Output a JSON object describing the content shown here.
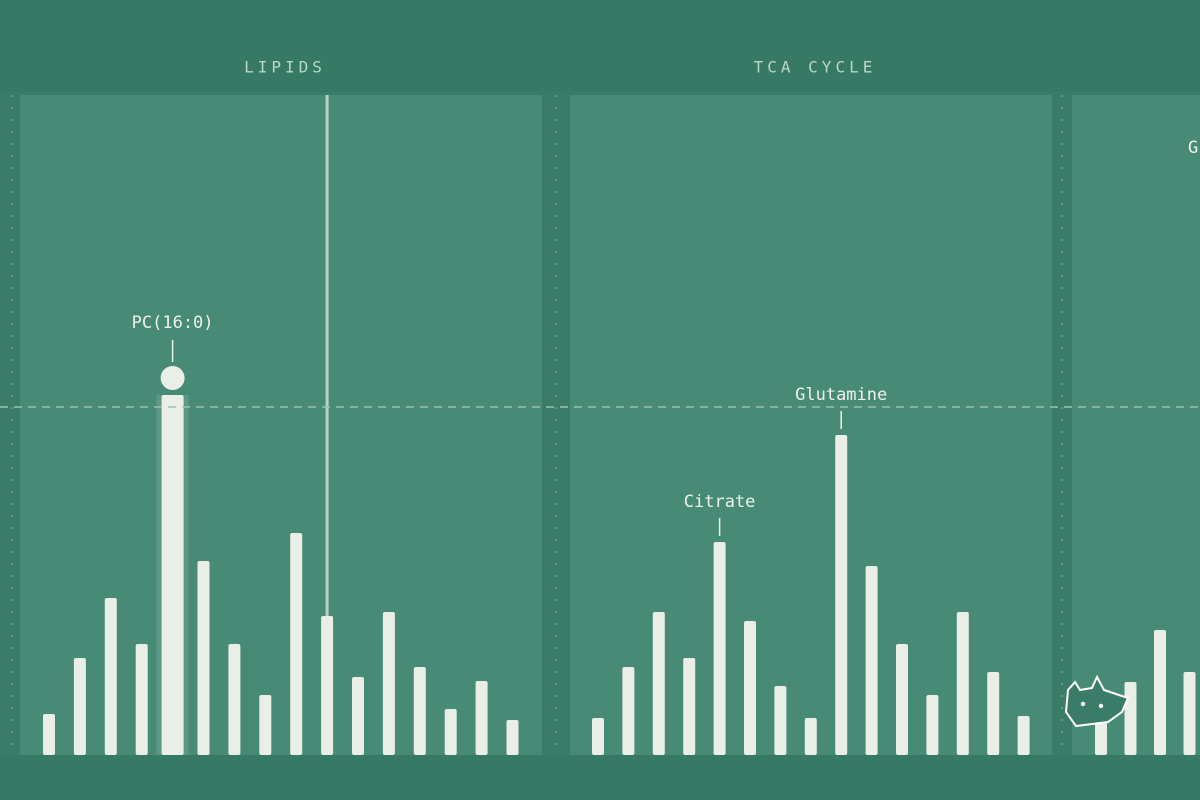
{
  "reference_line": 348,
  "chart_data": [
    {
      "type": "bar",
      "title": "LIPIDS",
      "color": "#e9eee7",
      "categories": [
        null,
        null,
        null,
        null,
        "PC(16:0)",
        null,
        null,
        null,
        null,
        null,
        null,
        null,
        null,
        null,
        null,
        null
      ],
      "values": [
        41,
        97,
        157,
        111,
        360,
        194,
        111,
        60,
        222,
        139,
        78,
        143,
        88,
        46,
        74,
        35
      ],
      "highlight_index": 4,
      "cursor_index": 9
    },
    {
      "type": "bar",
      "title": "TCA CYCLE",
      "color": "#e9eee7",
      "categories": [
        null,
        null,
        null,
        null,
        "Citrate",
        null,
        null,
        null,
        "Glutamine",
        null,
        null,
        null,
        null,
        null,
        null
      ],
      "values": [
        37,
        88,
        143,
        97,
        213,
        134,
        69,
        37,
        320,
        189,
        111,
        60,
        143,
        83,
        39
      ]
    },
    {
      "type": "bar",
      "annotation": "G",
      "color": "#e9eee7",
      "categories": [
        null,
        null,
        null,
        null
      ],
      "values": [
        35,
        73,
        125,
        83
      ]
    }
  ]
}
